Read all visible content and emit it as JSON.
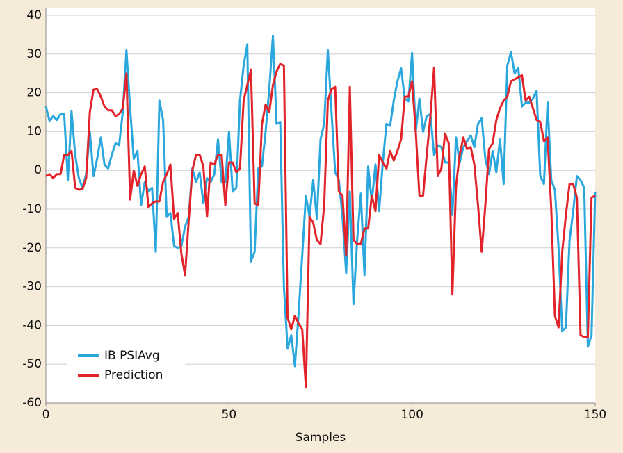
{
  "chart_data": {
    "type": "line",
    "x_label": "Samples",
    "x": [
      0,
      1,
      2,
      3,
      4,
      5,
      6,
      7,
      8,
      9,
      10,
      11,
      12,
      13,
      14,
      15,
      16,
      17,
      18,
      19,
      20,
      21,
      22,
      23,
      24,
      25,
      26,
      27,
      28,
      29,
      30,
      31,
      32,
      33,
      34,
      35,
      36,
      37,
      38,
      39,
      40,
      41,
      42,
      43,
      44,
      45,
      46,
      47,
      48,
      49,
      50,
      51,
      52,
      53,
      54,
      55,
      56,
      57,
      58,
      59,
      60,
      61,
      62,
      63,
      64,
      65,
      66,
      67,
      68,
      69,
      70,
      71,
      72,
      73,
      74,
      75,
      76,
      77,
      78,
      79,
      80,
      81,
      82,
      83,
      84,
      85,
      86,
      87,
      88,
      89,
      90,
      91,
      92,
      93,
      94,
      95,
      96,
      97,
      98,
      99,
      100,
      101,
      102,
      103,
      104,
      105,
      106,
      107,
      108,
      109,
      110,
      111,
      112,
      113,
      114,
      115,
      116,
      117,
      118,
      119,
      120,
      121,
      122,
      123,
      124,
      125,
      126,
      127,
      128,
      129,
      130,
      131,
      132,
      133,
      134,
      135,
      136,
      137,
      138,
      139,
      140,
      141,
      142,
      143,
      144,
      145,
      146,
      147,
      148,
      149,
      150
    ],
    "series": [
      {
        "name": "IB PSIAvg",
        "color": "#2aa7dc",
        "values": [
          16.5,
          12.8,
          14,
          13,
          14.5,
          14.5,
          -2.5,
          15.3,
          4,
          -2,
          -4.5,
          -1,
          10,
          -1.5,
          3,
          8.5,
          1.5,
          0.5,
          4,
          7,
          6.5,
          15,
          31,
          16,
          3,
          5,
          -9,
          -3,
          -5.5,
          -4.5,
          -21,
          18,
          13,
          -12,
          -11,
          -19.5,
          -20,
          -19.5,
          -14.5,
          -12,
          0.5,
          -3,
          -0.5,
          -8.5,
          -2,
          -3,
          -1,
          8,
          -3,
          -3,
          10,
          -5.5,
          -4.5,
          18,
          27,
          32.5,
          -23.5,
          -21,
          0.5,
          1,
          10,
          21,
          34.7,
          12,
          12.5,
          -30,
          -46,
          -42.5,
          -50.5,
          -37,
          -22,
          -6.5,
          -12,
          -2.5,
          -12.5,
          8,
          12,
          31,
          15,
          -0.5,
          -2.5,
          -12,
          -26.5,
          -5.5,
          -34.5,
          -18,
          -6,
          -27,
          1,
          -8,
          1.5,
          -10.5,
          2,
          12,
          11.5,
          18,
          23,
          26.3,
          18.5,
          17.8,
          30.3,
          10,
          18.5,
          10,
          14,
          14.5,
          4,
          6.5,
          6,
          2,
          2,
          -11.5,
          8.5,
          2,
          6,
          7.5,
          9,
          6,
          12,
          13.5,
          3,
          -1,
          5,
          -0.5,
          8,
          -3.5,
          27,
          30.5,
          25,
          26.5,
          16.5,
          17.5,
          17.5,
          18.5,
          20.5,
          -1.5,
          -3.5,
          17.5,
          -2.5,
          -5,
          -20,
          -41.5,
          -40.5,
          -18,
          -10.5,
          -1.5,
          -2.5,
          -4.5,
          -45.5,
          -42.5,
          -5.5
        ]
      },
      {
        "name": "Prediction",
        "color": "#e2232a",
        "values": [
          -1.5,
          -1,
          -2,
          -1,
          -1,
          4,
          4,
          5,
          -4.5,
          -5,
          -4.8,
          -2,
          15,
          20.8,
          21,
          19,
          16.5,
          15.5,
          15.5,
          14,
          14.5,
          16,
          25,
          -7.5,
          0,
          -4,
          -1,
          1,
          -9.5,
          -8.5,
          -8,
          -8,
          -3,
          -1,
          1.5,
          -12.5,
          -11,
          -21.5,
          -27,
          -13,
          0,
          4,
          4,
          1,
          -12,
          2,
          1.5,
          4,
          4,
          -9,
          2,
          2,
          -0.5,
          0.5,
          18,
          22,
          26,
          -8.5,
          -9,
          12,
          17,
          15,
          22,
          25.5,
          27.5,
          27,
          -38,
          -41,
          -37.5,
          -39.5,
          -41,
          -56,
          -12,
          -13.5,
          -18,
          -19,
          -9,
          18,
          21,
          21.5,
          -5.5,
          -6.5,
          -22,
          21.5,
          -18,
          -19,
          -19,
          -15,
          -15,
          -6.5,
          -10.5,
          4,
          2,
          0.5,
          5,
          2.5,
          5,
          8,
          19,
          19,
          23,
          10,
          -6.5,
          -6.5,
          4,
          14,
          26.5,
          -1.5,
          0.5,
          9.5,
          7,
          -32,
          -4,
          4,
          8.5,
          5.5,
          6,
          1.5,
          -9,
          -21,
          -9,
          5.5,
          7,
          13,
          16,
          18,
          19,
          23,
          23.5,
          24,
          24.5,
          18,
          19,
          16,
          13,
          12.5,
          7.5,
          8.5,
          -10,
          -37.5,
          -40.5,
          -21,
          -11.5,
          -3.5,
          -3.5,
          -7,
          -42.5,
          -43,
          -43,
          -7,
          -6.5
        ]
      }
    ],
    "xlim": [
      0,
      150
    ],
    "xticks": [
      0,
      50,
      100,
      150
    ],
    "ylim": [
      -60,
      40
    ],
    "yticks": [
      -60,
      -50,
      -40,
      -30,
      -20,
      -10,
      0,
      10,
      20,
      30,
      40
    ],
    "grid": true,
    "legend": "lower left"
  }
}
